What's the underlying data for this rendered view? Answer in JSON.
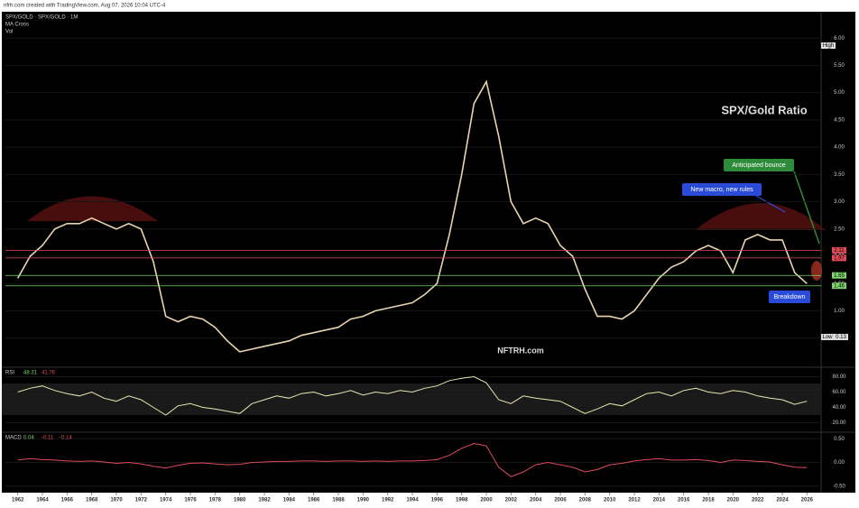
{
  "header": {
    "source": "nfrh.com created with TradingView.com, Aug 07, 2026 10:04 UTC-4",
    "symbol": "SPX/GOLD · SPX/GOLD · 1M",
    "ma": "MA Cross",
    "vol": "Vol"
  },
  "chart_data": [
    {
      "type": "line",
      "title": "SPX/Gold Ratio",
      "watermark": "NFTRH.com",
      "annotations": [
        "Anticipated bounce",
        "New macro, new rules",
        "Breakdown"
      ],
      "high_label": "High",
      "low_label": "Low",
      "low_value": 0.13,
      "x": [
        1962,
        1963,
        1964,
        1965,
        1966,
        1967,
        1968,
        1969,
        1970,
        1971,
        1972,
        1973,
        1974,
        1975,
        1976,
        1977,
        1978,
        1979,
        1980,
        1981,
        1982,
        1983,
        1984,
        1985,
        1986,
        1987,
        1988,
        1989,
        1990,
        1991,
        1992,
        1993,
        1994,
        1995,
        1996,
        1997,
        1998,
        1999,
        2000,
        2001,
        2002,
        2003,
        2004,
        2005,
        2006,
        2007,
        2008,
        2009,
        2010,
        2011,
        2012,
        2013,
        2014,
        2015,
        2016,
        2017,
        2018,
        2019,
        2020,
        2021,
        2022,
        2023,
        2024,
        2025,
        2026
      ],
      "series": [
        {
          "name": "SPX/GOLD",
          "color": "#e8d5b0",
          "values": [
            1.6,
            2.0,
            2.2,
            2.5,
            2.6,
            2.6,
            2.7,
            2.6,
            2.5,
            2.6,
            2.5,
            1.9,
            0.9,
            0.8,
            0.9,
            0.85,
            0.7,
            0.45,
            0.25,
            0.3,
            0.35,
            0.4,
            0.45,
            0.55,
            0.6,
            0.65,
            0.7,
            0.85,
            0.9,
            1.0,
            1.05,
            1.1,
            1.15,
            1.3,
            1.5,
            2.4,
            3.5,
            4.8,
            5.2,
            4.2,
            3.0,
            2.6,
            2.7,
            2.6,
            2.2,
            2.0,
            1.4,
            0.9,
            0.9,
            0.85,
            1.0,
            1.3,
            1.6,
            1.8,
            1.9,
            2.1,
            2.2,
            2.1,
            1.7,
            2.3,
            2.4,
            2.3,
            2.3,
            1.7,
            1.5
          ]
        }
      ],
      "levels": [
        {
          "value": 2.11,
          "color": "#e04b5a"
        },
        {
          "value": 1.97,
          "color": "#e04b5a"
        },
        {
          "value": 1.65,
          "color": "#7fd36b"
        },
        {
          "value": 1.46,
          "color": "#7fd36b"
        }
      ],
      "ylim": [
        0,
        6.4
      ],
      "yticks": [
        {
          "value": 0.5,
          "label": "0.50"
        },
        {
          "value": 1,
          "label": "1.00"
        },
        {
          "value": 1.5,
          "label": "1.50"
        },
        {
          "value": 2,
          "label": "2.00"
        },
        {
          "value": 2.5,
          "label": "2.50"
        },
        {
          "value": 3,
          "label": "3.00"
        },
        {
          "value": 3.5,
          "label": "3.50"
        },
        {
          "value": 4,
          "label": "4.00"
        },
        {
          "value": 4.5,
          "label": "4.50"
        },
        {
          "value": 5,
          "label": "5.00"
        },
        {
          "value": 5.5,
          "label": "5.50"
        },
        {
          "value": 6,
          "label": "6.00"
        }
      ],
      "xlim": [
        1961,
        2027
      ],
      "xticks": [
        1962,
        1964,
        1966,
        1968,
        1970,
        1972,
        1974,
        1976,
        1978,
        1980,
        1982,
        1984,
        1986,
        1988,
        1990,
        1992,
        1994,
        1996,
        1998,
        2000,
        2002,
        2004,
        2006,
        2008,
        2010,
        2012,
        2014,
        2016,
        2018,
        2020,
        2022,
        2024,
        2026
      ]
    },
    {
      "type": "line",
      "title": "RSI",
      "readouts": [
        48.31,
        41.76
      ],
      "series": [
        {
          "name": "RSI",
          "color": "#e9e6b0",
          "values": [
            60,
            65,
            68,
            62,
            58,
            55,
            60,
            52,
            48,
            55,
            50,
            40,
            30,
            42,
            45,
            40,
            38,
            35,
            32,
            45,
            50,
            55,
            52,
            58,
            60,
            55,
            58,
            62,
            56,
            60,
            58,
            62,
            60,
            65,
            68,
            75,
            78,
            80,
            72,
            50,
            45,
            55,
            52,
            50,
            48,
            40,
            32,
            38,
            45,
            42,
            50,
            58,
            60,
            55,
            62,
            65,
            60,
            58,
            62,
            60,
            55,
            52,
            50,
            44,
            48
          ]
        }
      ],
      "ylim": [
        10,
        90
      ],
      "yticks": [
        {
          "value": 20,
          "label": "20.00"
        },
        {
          "value": 40,
          "label": "40.00"
        },
        {
          "value": 60,
          "label": "60.00"
        },
        {
          "value": 80,
          "label": "80.00"
        }
      ]
    },
    {
      "type": "line",
      "title": "MACD",
      "readouts": [
        0.04,
        -0.11,
        -0.14
      ],
      "series": [
        {
          "name": "MACD",
          "color": "#e04b5a",
          "values": [
            0.05,
            0.08,
            0.06,
            0.05,
            0.03,
            0.02,
            0.03,
            0.01,
            -0.02,
            0.0,
            -0.03,
            -0.08,
            -0.12,
            -0.06,
            -0.02,
            -0.01,
            -0.03,
            -0.05,
            -0.04,
            0.0,
            0.01,
            0.02,
            0.02,
            0.03,
            0.03,
            0.02,
            0.03,
            0.03,
            0.02,
            0.03,
            0.02,
            0.03,
            0.03,
            0.04,
            0.06,
            0.15,
            0.3,
            0.4,
            0.35,
            -0.1,
            -0.3,
            -0.2,
            -0.05,
            0.0,
            -0.05,
            -0.1,
            -0.2,
            -0.15,
            -0.05,
            -0.02,
            0.03,
            0.06,
            0.08,
            0.05,
            0.05,
            0.06,
            0.04,
            0.0,
            0.05,
            0.04,
            0.02,
            0.01,
            -0.05,
            -0.1,
            -0.11
          ]
        }
      ],
      "ylim": [
        -0.6,
        0.6
      ],
      "yticks": [
        {
          "value": -0.5,
          "label": "-0.50"
        },
        {
          "value": 0,
          "label": "0.00"
        },
        {
          "value": 0.5,
          "label": "0.50"
        }
      ]
    }
  ]
}
